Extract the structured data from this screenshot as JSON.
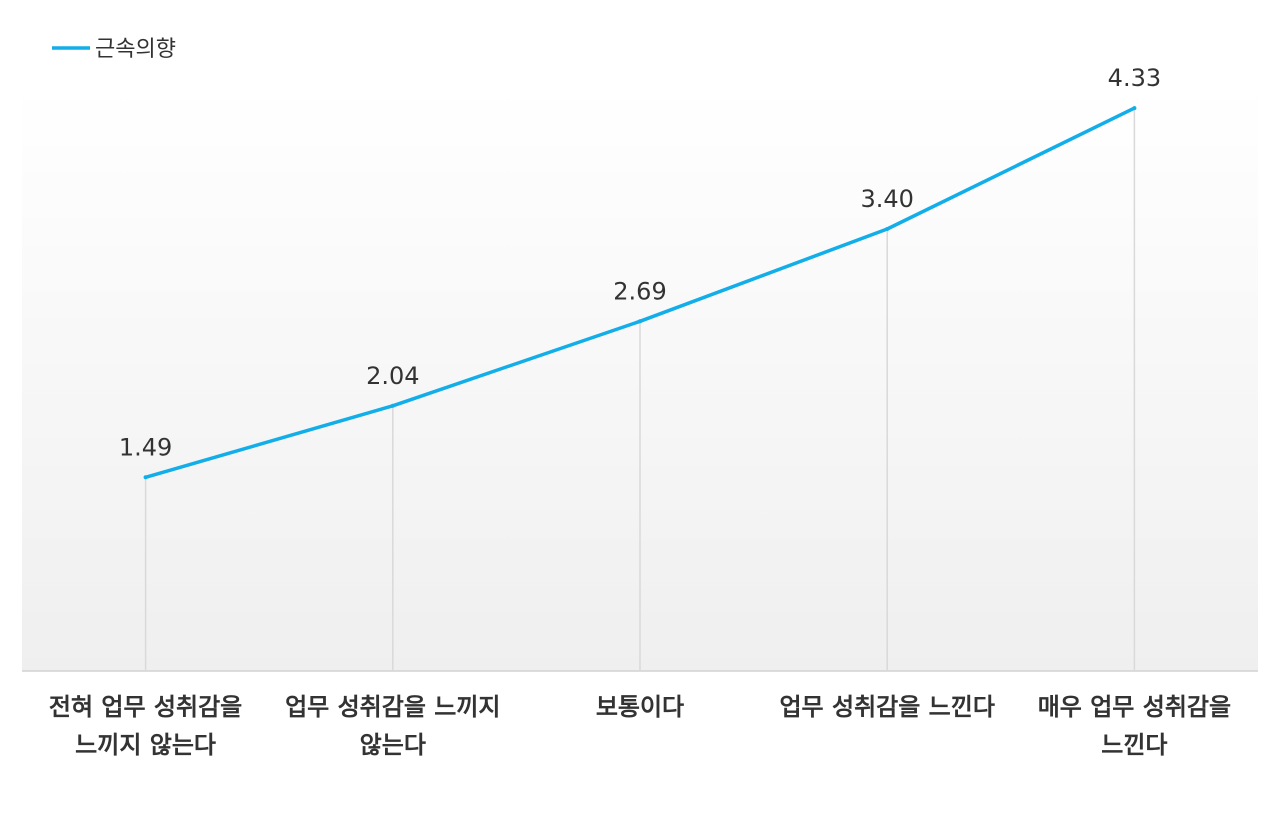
{
  "chart_data": {
    "type": "line",
    "categories": [
      "전혀 업무 성취감을\n느끼지 않는다",
      "업무 성취감을 느끼지\n않는다",
      "보통이다",
      "업무 성취감을 느낀다",
      "매우 업무 성취감을\n느낀다"
    ],
    "series": [
      {
        "name": "근속의향",
        "values": [
          1.49,
          2.04,
          2.69,
          3.4,
          4.33
        ],
        "labels": [
          "1.49",
          "2.04",
          "2.69",
          "3.40",
          "4.33"
        ],
        "color": "#12aee9"
      }
    ],
    "ylim": [
      0,
      4.5
    ],
    "grid": false,
    "drop_lines": true,
    "legend": "top-left",
    "colors": {
      "plot_background_top": "#ffffff",
      "plot_background_bottom": "#efefef",
      "axis": "#d2d2d2",
      "text": "#333333"
    }
  }
}
